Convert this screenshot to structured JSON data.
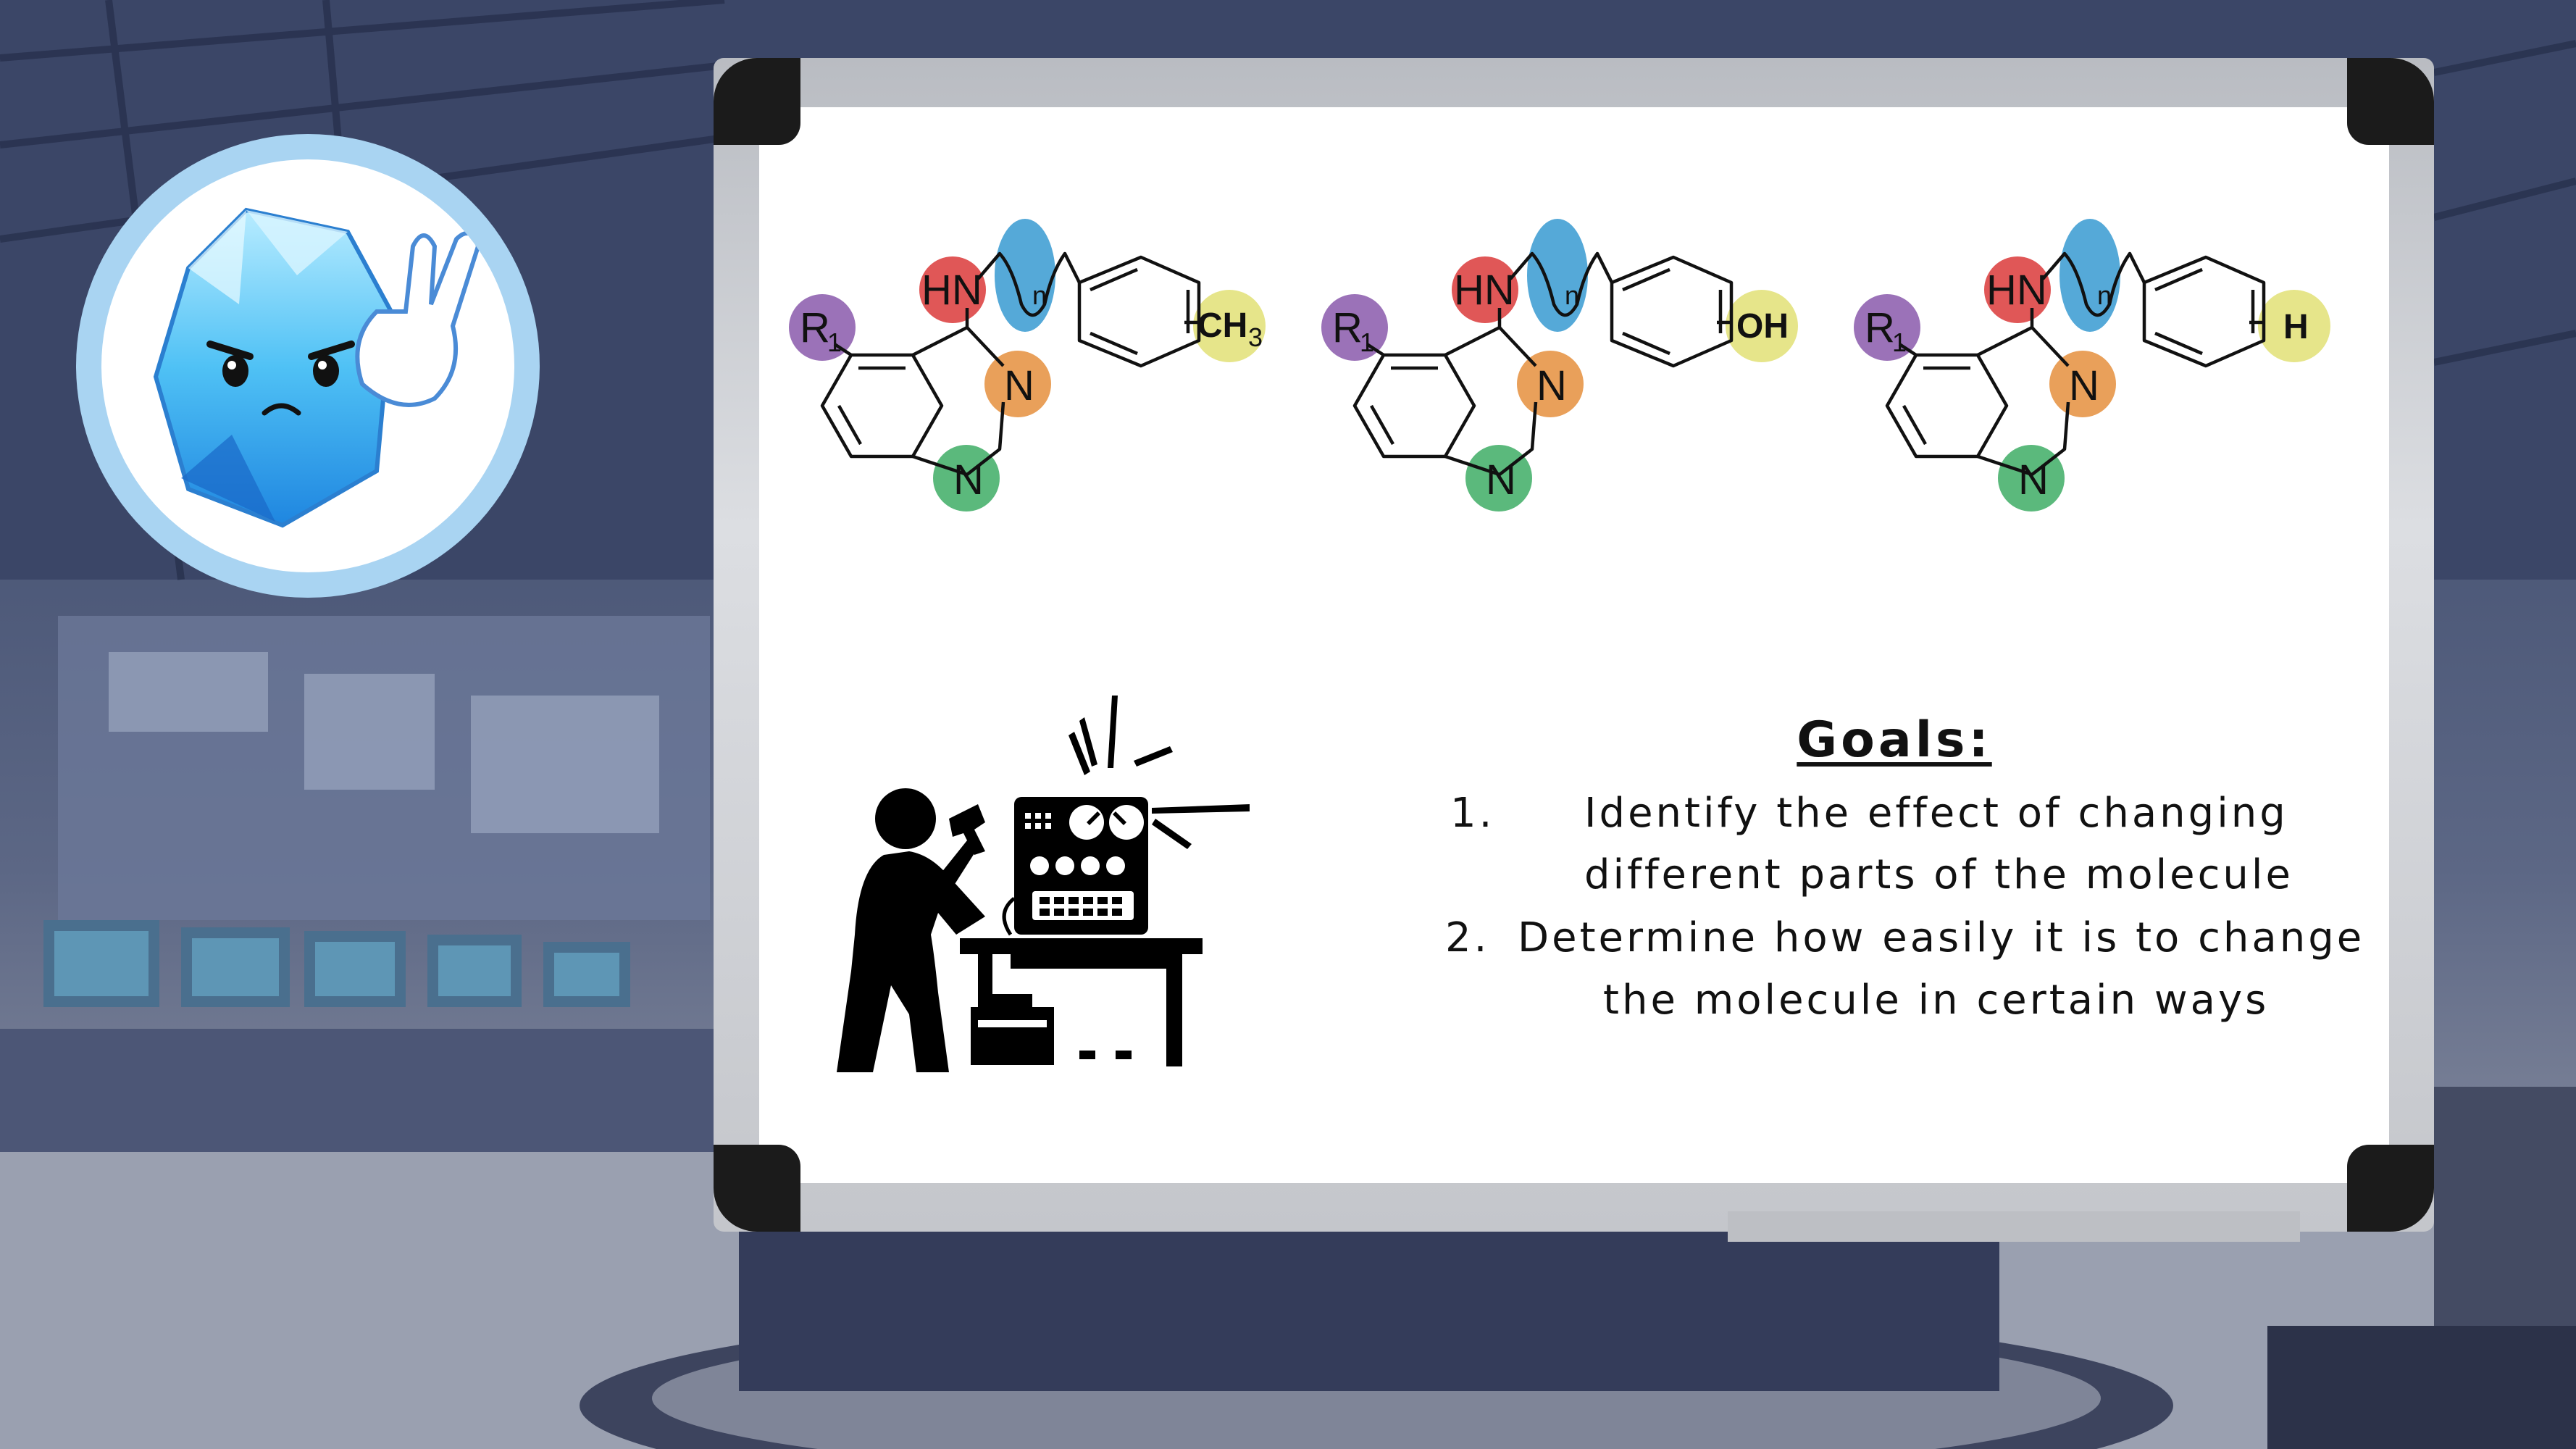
{
  "molecules": [
    {
      "r_label": "R",
      "r_sub": "1",
      "amine_label": "HN",
      "chain_sub": "n",
      "ring_n_top": "N",
      "ring_n_bottom": "N",
      "substituent": "CH",
      "substituent_sub": "3"
    },
    {
      "r_label": "R",
      "r_sub": "1",
      "amine_label": "HN",
      "chain_sub": "n",
      "ring_n_top": "N",
      "ring_n_bottom": "N",
      "substituent": "OH",
      "substituent_sub": ""
    },
    {
      "r_label": "R",
      "r_sub": "1",
      "amine_label": "HN",
      "chain_sub": "n",
      "ring_n_top": "N",
      "ring_n_bottom": "N",
      "substituent": "H",
      "substituent_sub": ""
    }
  ],
  "highlight_colors": {
    "r_group": "#9b72b8",
    "amine": "#e05757",
    "chain": "#55a9d8",
    "ring_n_top": "#e9a05a",
    "ring_n_bottom": "#5bb97c",
    "substituent": "#e6e58a"
  },
  "goals": {
    "title": "Goals:",
    "items": [
      {
        "number": "1.",
        "lines": [
          "Identify the effect of changing",
          "different parts of the molecule"
        ]
      },
      {
        "number": "2.",
        "lines": [
          "Determine how easily it is to change",
          "the molecule in certain ways"
        ]
      }
    ]
  },
  "icons": {
    "mascot": "ice-crystal-mascot-icon",
    "engineer": "engineer-repairing-machine-icon"
  }
}
